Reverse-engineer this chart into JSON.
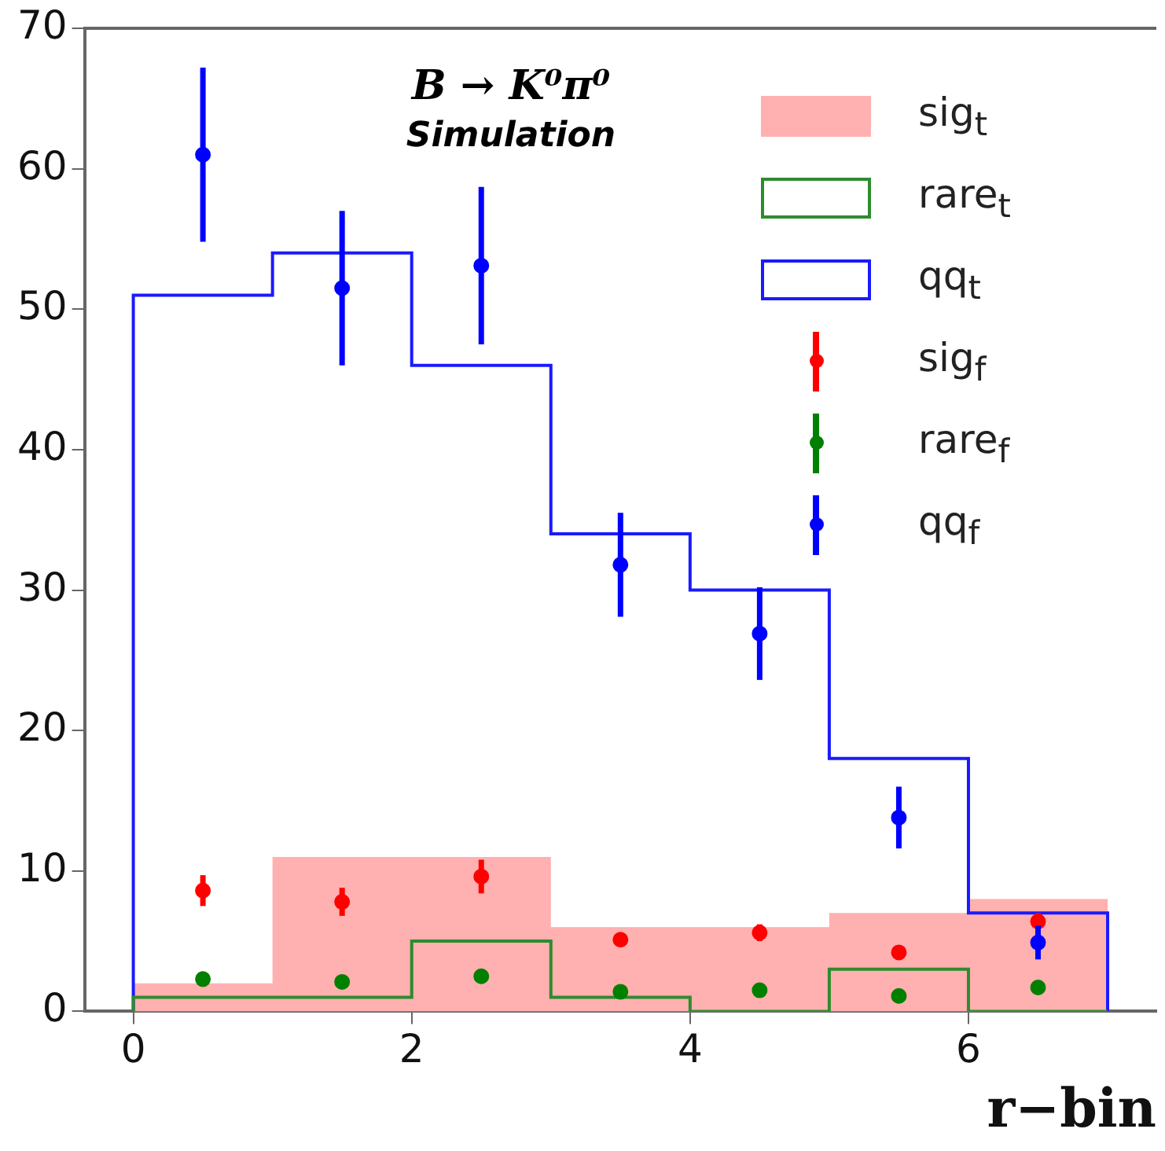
{
  "chart_data": {
    "type": "histogram",
    "xlabel": "r−bin",
    "annotations": [
      "B → K⁰π⁰",
      "Simulation"
    ],
    "bins": [
      0,
      1,
      2,
      3,
      4,
      5,
      6,
      7
    ],
    "xlim": [
      -0.35,
      7.35
    ],
    "xticks": [
      0,
      2,
      4,
      6
    ],
    "ylim": [
      0,
      70
    ],
    "yticks": [
      0,
      10,
      20,
      30,
      40,
      50,
      60,
      70
    ],
    "grid": false,
    "legend": "top right",
    "marker": "circle",
    "series": [
      {
        "name": "sig$_{t}$",
        "color": "#ffb0b0",
        "values": [
          2,
          11,
          11,
          6,
          6,
          7,
          8
        ]
      },
      {
        "type": "step",
        "name": "rare$_{t}$",
        "color": "#2e8b2e",
        "marker": "none",
        "x": [
          0,
          0,
          1,
          2,
          3,
          4,
          5,
          6,
          7,
          7
        ],
        "values": [
          0,
          1,
          1,
          5,
          1,
          0,
          3,
          0,
          0,
          0
        ]
      },
      {
        "type": "step",
        "name": "qq$_{t}$",
        "color": "#1a1aff",
        "marker": "none",
        "x": [
          0,
          0,
          1,
          2,
          3,
          4,
          5,
          6,
          7,
          7
        ],
        "values": [
          0,
          51,
          54,
          46,
          34,
          30,
          18,
          7,
          7,
          0
        ]
      },
      {
        "type": "scatter",
        "name": "sig$_{f}$",
        "color": "#ff0000",
        "x": [
          0.5,
          1.5,
          2.5,
          3.5,
          4.5,
          5.5,
          6.5
        ],
        "values": [
          8.6,
          7.8,
          9.6,
          5.1,
          5.6,
          4.2,
          6.4
        ],
        "errors": [
          1.1,
          1,
          1.2,
          0.5,
          0.6,
          0.4,
          0.6
        ]
      },
      {
        "type": "scatter",
        "name": "rare$_{f}$",
        "color": "#008000",
        "x": [
          0.5,
          1.5,
          2.5,
          3.5,
          4.5,
          5.5,
          6.5
        ],
        "values": [
          2.3,
          2.1,
          2.5,
          1.4,
          1.5,
          1.1,
          1.7
        ]
      },
      {
        "type": "scatter",
        "name": "qq$_{f}$",
        "color": "#0000ff",
        "x": [
          0.5,
          1.5,
          2.5,
          3.5,
          4.5,
          5.5,
          6.5
        ],
        "values": [
          61,
          51.5,
          53.1,
          31.8,
          26.9,
          13.8,
          4.9
        ],
        "errors": [
          6.2,
          5.5,
          5.6,
          3.7,
          3.3,
          2.2,
          1.2
        ]
      }
    ]
  }
}
